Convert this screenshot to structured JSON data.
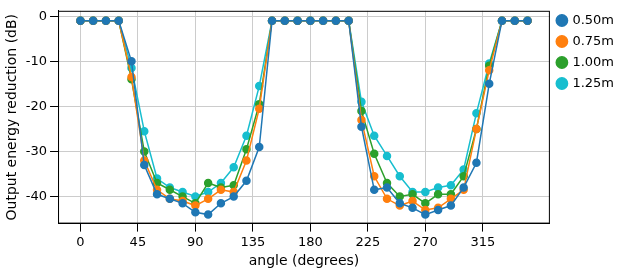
{
  "chart_data": {
    "type": "line",
    "x_label": "angle (degrees)",
    "y_label": "Output energy reduction (dB)",
    "x": [
      0,
      10,
      20,
      30,
      40,
      50,
      60,
      70,
      80,
      90,
      100,
      110,
      120,
      130,
      140,
      150,
      160,
      170,
      180,
      190,
      200,
      210,
      220,
      230,
      240,
      250,
      260,
      270,
      280,
      290,
      300,
      310,
      320,
      330,
      340,
      350
    ],
    "series": [
      {
        "name": "0.50m",
        "color": "#1f77b4",
        "marker": "circle",
        "line_style": "solid",
        "values": [
          -1,
          -1,
          -1,
          -1,
          -10,
          -33,
          -39.5,
          -40.5,
          -41.5,
          -43.5,
          -44,
          -41.5,
          -40,
          -36.5,
          -29,
          -1,
          -1,
          -1,
          -1,
          -1,
          -1,
          -1,
          -24.5,
          -38.5,
          -38,
          -41.5,
          -42.5,
          -44,
          -43,
          -42,
          -38,
          -32.5,
          -15,
          -1,
          -1,
          -1
        ]
      },
      {
        "name": "0.75m",
        "color": "#ff7f0e",
        "marker": "circle",
        "line_style": "solid",
        "values": [
          -1,
          -1,
          -1,
          -1,
          -13.5,
          -32,
          -38.5,
          -40.5,
          -41,
          -42,
          -40.5,
          -38.5,
          -39,
          -32,
          -20.5,
          -1,
          -1,
          -1,
          -1,
          -1,
          -1,
          -1,
          -23,
          -35.5,
          -40.5,
          -42,
          -41,
          -43,
          -42.5,
          -40.5,
          -38.5,
          -25,
          -12,
          -1,
          -1,
          -1
        ]
      },
      {
        "name": "1.00m",
        "color": "#2ca02c",
        "marker": "circle",
        "line_style": "solid",
        "values": [
          -1,
          -1,
          -1,
          -1,
          -14,
          -30,
          -37,
          -38.5,
          -40,
          -41.5,
          -37,
          -38,
          -37.5,
          -29.5,
          -19.5,
          -1,
          -1,
          -1,
          -1,
          -1,
          -1,
          -1,
          -21,
          -30.5,
          -37,
          -40,
          -39.5,
          -41.5,
          -39.5,
          -39.5,
          -35.5,
          -25,
          -11,
          -1,
          -1,
          -1
        ]
      },
      {
        "name": "1.25m",
        "color": "#17becf",
        "marker": "circle",
        "line_style": "solid",
        "values": [
          -1,
          -1,
          -1,
          -1,
          -11.5,
          -25.5,
          -36,
          -38,
          -39,
          -40,
          -39,
          -37,
          -33.5,
          -26.5,
          -15.5,
          -1,
          -1,
          -1,
          -1,
          -1,
          -1,
          -1,
          -19,
          -26.5,
          -31,
          -35.5,
          -39,
          -39,
          -38,
          -37.5,
          -34,
          -21.5,
          -10.5,
          -1,
          -1,
          -1
        ]
      }
    ],
    "xlim": [
      -17.5,
      367.5
    ],
    "xticks": [
      0,
      45,
      90,
      135,
      180,
      225,
      270,
      315
    ],
    "ylim": [
      -46,
      1.2
    ],
    "yticks": [
      -40,
      -30,
      -20,
      -10,
      0
    ],
    "grid": true,
    "legend": "upper right"
  }
}
